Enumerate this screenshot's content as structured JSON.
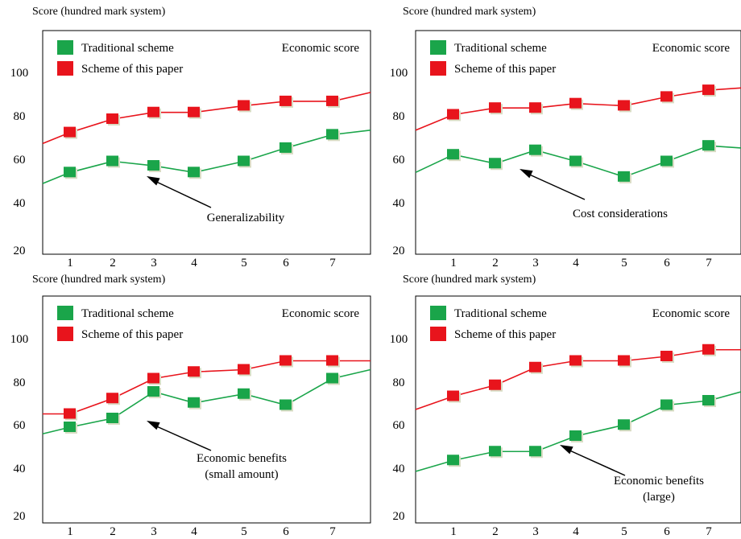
{
  "chart_data": [
    {
      "type": "line",
      "ylabel": "Score (hundred mark system)",
      "tag": "Economic score",
      "annotation": [
        "Generalizability"
      ],
      "x_ticks": [
        "1",
        "2",
        "3",
        "4",
        "5",
        "6",
        "7"
      ],
      "yticks": [
        "20",
        "40",
        "60",
        "80",
        "100"
      ],
      "ylim": [
        18,
        118
      ],
      "series": [
        {
          "name": "Traditional scheme",
          "color": "#1aa54a",
          "start": 50,
          "end": 74,
          "points": [
            [
              1,
              55
            ],
            [
              2,
              60
            ],
            [
              3,
              58
            ],
            [
              4,
              55
            ],
            [
              5,
              60
            ],
            [
              6,
              66
            ],
            [
              7,
              72
            ]
          ]
        },
        {
          "name": "Scheme of this paper",
          "color": "#e8141c",
          "start": 68,
          "end": 91,
          "points": [
            [
              1,
              73
            ],
            [
              2,
              79
            ],
            [
              3,
              82
            ],
            [
              4,
              82
            ],
            [
              5,
              85
            ],
            [
              6,
              87
            ],
            [
              7,
              87
            ]
          ]
        }
      ]
    },
    {
      "type": "line",
      "ylabel": "Score (hundred mark system)",
      "tag": "Economic score",
      "annotation": [
        "Cost considerations"
      ],
      "x_ticks": [
        "1",
        "2",
        "3",
        "4",
        "5",
        "6",
        "7"
      ],
      "yticks": [
        "20",
        "40",
        "60",
        "80",
        "100"
      ],
      "ylim": [
        18,
        118
      ],
      "series": [
        {
          "name": "Traditional scheme",
          "color": "#1aa54a",
          "start": 55,
          "end": 66,
          "points": [
            [
              1,
              63
            ],
            [
              2,
              59
            ],
            [
              3,
              65
            ],
            [
              4,
              60
            ],
            [
              5,
              53
            ],
            [
              6,
              60
            ],
            [
              7,
              67
            ]
          ]
        },
        {
          "name": "Scheme of this paper",
          "color": "#e8141c",
          "start": 74,
          "end": 93,
          "points": [
            [
              1,
              81
            ],
            [
              2,
              84
            ],
            [
              3,
              84
            ],
            [
              4,
              86
            ],
            [
              5,
              85
            ],
            [
              6,
              89
            ],
            [
              7,
              92
            ]
          ]
        }
      ]
    },
    {
      "type": "line",
      "ylabel": "Score (hundred mark system)",
      "tag": "Economic score",
      "annotation": [
        "Economic benefits",
        "(small amount)"
      ],
      "x_ticks": [
        "1",
        "2",
        "3",
        "4",
        "5",
        "6",
        "7"
      ],
      "yticks": [
        "20",
        "40",
        "60",
        "80",
        "100"
      ],
      "ylim": [
        18,
        118
      ],
      "series": [
        {
          "name": "Traditional scheme",
          "color": "#1aa54a",
          "start": 57,
          "end": 86,
          "points": [
            [
              1,
              60
            ],
            [
              2,
              64
            ],
            [
              3,
              76
            ],
            [
              4,
              71
            ],
            [
              5,
              75
            ],
            [
              6,
              70
            ],
            [
              7,
              82
            ]
          ]
        },
        {
          "name": "Scheme of this paper",
          "color": "#e8141c",
          "start": 66,
          "end": 90,
          "points": [
            [
              1,
              66
            ],
            [
              2,
              73
            ],
            [
              3,
              82
            ],
            [
              4,
              85
            ],
            [
              5,
              86
            ],
            [
              6,
              90
            ],
            [
              7,
              90
            ]
          ]
        }
      ]
    },
    {
      "type": "line",
      "ylabel": "Score (hundred mark system)",
      "tag": "Economic score",
      "annotation": [
        "Economic benefits",
        "(large)"
      ],
      "x_ticks": [
        "1",
        "2",
        "3",
        "4",
        "5",
        "6",
        "7"
      ],
      "yticks": [
        "20",
        "40",
        "60",
        "80",
        "100"
      ],
      "ylim": [
        18,
        118
      ],
      "series": [
        {
          "name": "Traditional scheme",
          "color": "#1aa54a",
          "start": 40,
          "end": 76,
          "points": [
            [
              1,
              45
            ],
            [
              2,
              49
            ],
            [
              3,
              49
            ],
            [
              4,
              56
            ],
            [
              5,
              61
            ],
            [
              6,
              70
            ],
            [
              7,
              72
            ]
          ]
        },
        {
          "name": "Scheme of this paper",
          "color": "#e8141c",
          "start": 68,
          "end": 95,
          "points": [
            [
              1,
              74
            ],
            [
              2,
              79
            ],
            [
              3,
              87
            ],
            [
              4,
              90
            ],
            [
              5,
              90
            ],
            [
              6,
              92
            ],
            [
              7,
              95
            ]
          ]
        }
      ]
    }
  ]
}
